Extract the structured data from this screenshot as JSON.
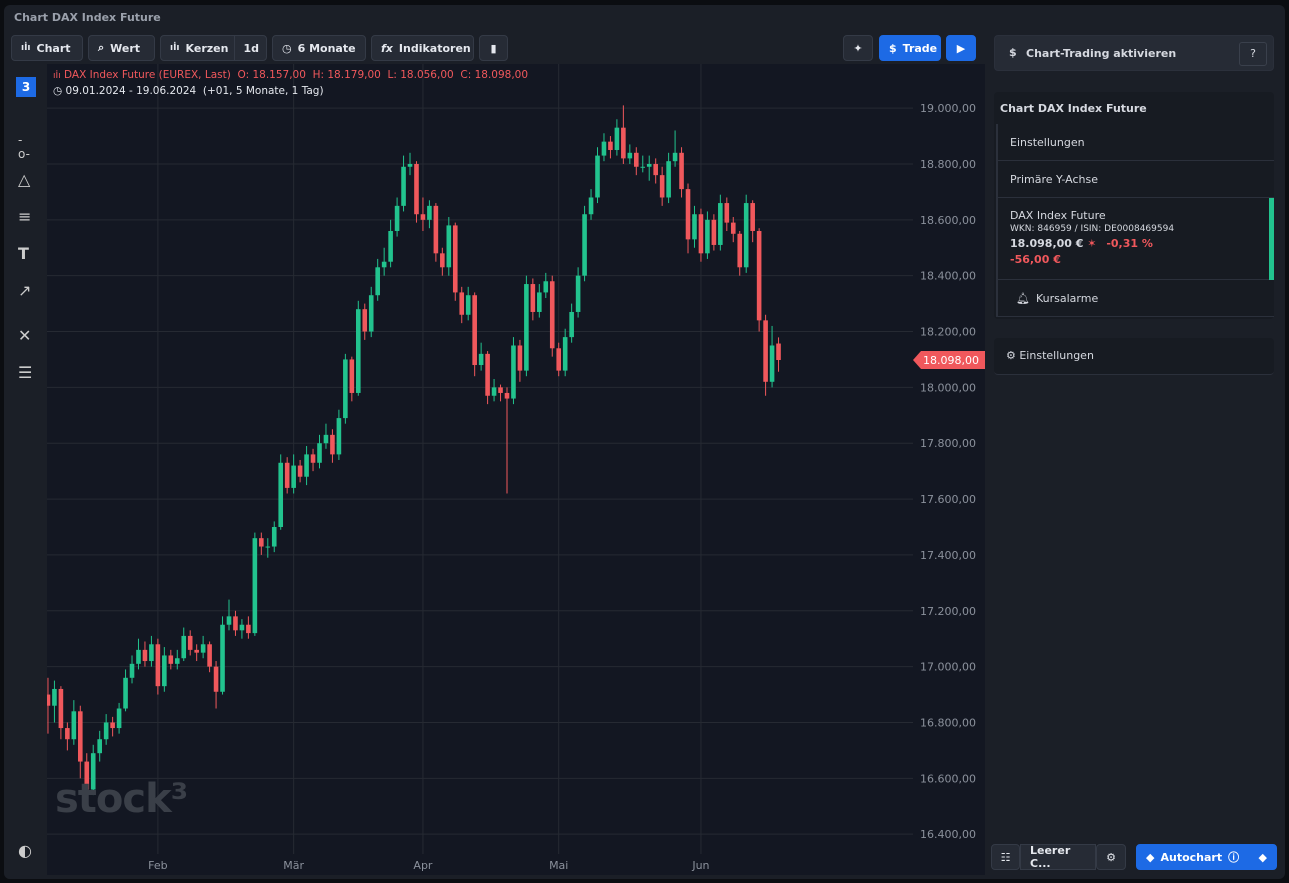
{
  "header": {
    "title": "Chart DAX Index Future"
  },
  "toolbar": {
    "chart": "Chart",
    "value": "Wert",
    "candles": "Kerzen",
    "interval": "1d",
    "range": "6 Monate",
    "indicators": "Indikatoren",
    "trade": "Trade"
  },
  "legend": {
    "instrument": "DAX Index Future (EUREX, Last)",
    "open": "O: 18.157,00",
    "high": "H: 18.179,00",
    "low": "L: 18.056,00",
    "close": "C: 18.098,00",
    "period": "09.01.2024 - 19.06.2024",
    "span": "(+01, 5 Monate, 1 Tag)"
  },
  "watermark": "stock³",
  "chart_data": {
    "type": "candlestick",
    "up_color": "#22c38e",
    "down_color": "#f0585c",
    "grid": true,
    "xlim": [
      -0.15,
      133.8
    ],
    "xticks": [
      {
        "value": 17,
        "label": "Feb"
      },
      {
        "value": 38,
        "label": "Mär"
      },
      {
        "value": 58,
        "label": "Apr"
      },
      {
        "value": 79,
        "label": "Mai"
      },
      {
        "value": 101,
        "label": "Jun"
      }
    ],
    "ylim": [
      16329,
      19158
    ],
    "yticks": [
      {
        "value": 16400,
        "label": "16.400,00"
      },
      {
        "value": 16600,
        "label": "16.600,00"
      },
      {
        "value": 16800,
        "label": "16.800,00"
      },
      {
        "value": 17000,
        "label": "17.000,00"
      },
      {
        "value": 17200,
        "label": "17.200,00"
      },
      {
        "value": 17400,
        "label": "17.400,00"
      },
      {
        "value": 17600,
        "label": "17.600,00"
      },
      {
        "value": 17800,
        "label": "17.800,00"
      },
      {
        "value": 18000,
        "label": "18.000,00"
      },
      {
        "value": 18200,
        "label": "18.200,00"
      },
      {
        "value": 18400,
        "label": "18.400,00"
      },
      {
        "value": 18600,
        "label": "18.600,00"
      },
      {
        "value": 18800,
        "label": "18.800,00"
      },
      {
        "value": 19000,
        "label": "19.000,00"
      }
    ],
    "last_price": {
      "value": 18098,
      "label": "18.098,00"
    },
    "ohlc": [
      [
        16900,
        16960,
        16760,
        16860
      ],
      [
        16860,
        16950,
        16800,
        16920
      ],
      [
        16920,
        16930,
        16740,
        16780
      ],
      [
        16780,
        16800,
        16700,
        16740
      ],
      [
        16740,
        16880,
        16720,
        16840
      ],
      [
        16840,
        16860,
        16600,
        16660
      ],
      [
        16660,
        16690,
        16520,
        16560
      ],
      [
        16560,
        16720,
        16540,
        16690
      ],
      [
        16690,
        16770,
        16660,
        16740
      ],
      [
        16740,
        16830,
        16720,
        16800
      ],
      [
        16800,
        16820,
        16750,
        16780
      ],
      [
        16780,
        16870,
        16760,
        16850
      ],
      [
        16850,
        16990,
        16840,
        16960
      ],
      [
        16960,
        17040,
        16940,
        17010
      ],
      [
        17010,
        17100,
        16990,
        17060
      ],
      [
        17060,
        17090,
        17000,
        17020
      ],
      [
        17020,
        17110,
        17000,
        17080
      ],
      [
        17080,
        17100,
        16900,
        16930
      ],
      [
        16930,
        17070,
        16910,
        17040
      ],
      [
        17040,
        17060,
        16990,
        17010
      ],
      [
        17010,
        17060,
        16990,
        17030
      ],
      [
        17030,
        17140,
        17020,
        17110
      ],
      [
        17110,
        17130,
        17040,
        17060
      ],
      [
        17060,
        17080,
        17020,
        17050
      ],
      [
        17050,
        17110,
        17030,
        17080
      ],
      [
        17080,
        17090,
        16980,
        17000
      ],
      [
        17000,
        17020,
        16850,
        16910
      ],
      [
        16910,
        17180,
        16900,
        17150
      ],
      [
        17150,
        17240,
        17130,
        17180
      ],
      [
        17180,
        17200,
        17110,
        17130
      ],
      [
        17130,
        17170,
        17100,
        17150
      ],
      [
        17150,
        17180,
        17100,
        17120
      ],
      [
        17120,
        17480,
        17110,
        17460
      ],
      [
        17460,
        17480,
        17400,
        17430
      ],
      [
        17430,
        17460,
        17390,
        17430
      ],
      [
        17430,
        17520,
        17410,
        17500
      ],
      [
        17500,
        17760,
        17490,
        17730
      ],
      [
        17730,
        17750,
        17620,
        17640
      ],
      [
        17640,
        17760,
        17620,
        17720
      ],
      [
        17720,
        17740,
        17660,
        17680
      ],
      [
        17680,
        17790,
        17650,
        17760
      ],
      [
        17760,
        17780,
        17700,
        17730
      ],
      [
        17730,
        17830,
        17710,
        17800
      ],
      [
        17800,
        17870,
        17780,
        17830
      ],
      [
        17830,
        17850,
        17730,
        17760
      ],
      [
        17760,
        17920,
        17740,
        17890
      ],
      [
        17890,
        18120,
        17870,
        18100
      ],
      [
        18100,
        18110,
        17950,
        17980
      ],
      [
        17980,
        18310,
        17970,
        18280
      ],
      [
        18280,
        18300,
        18170,
        18200
      ],
      [
        18200,
        18360,
        18180,
        18330
      ],
      [
        18330,
        18460,
        18310,
        18430
      ],
      [
        18430,
        18500,
        18400,
        18450
      ],
      [
        18450,
        18600,
        18430,
        18560
      ],
      [
        18560,
        18680,
        18540,
        18650
      ],
      [
        18650,
        18830,
        18630,
        18790
      ],
      [
        18790,
        18840,
        18760,
        18800
      ],
      [
        18800,
        18810,
        18590,
        18620
      ],
      [
        18620,
        18680,
        18560,
        18600
      ],
      [
        18600,
        18670,
        18570,
        18650
      ],
      [
        18650,
        18660,
        18450,
        18480
      ],
      [
        18480,
        18500,
        18400,
        18430
      ],
      [
        18430,
        18610,
        18400,
        18580
      ],
      [
        18580,
        18590,
        18310,
        18340
      ],
      [
        18340,
        18360,
        18230,
        18260
      ],
      [
        18260,
        18360,
        18240,
        18330
      ],
      [
        18330,
        18340,
        18040,
        18080
      ],
      [
        18080,
        18160,
        18060,
        18120
      ],
      [
        18120,
        18130,
        17940,
        17970
      ],
      [
        17970,
        18030,
        17950,
        18000
      ],
      [
        18000,
        18010,
        17950,
        17980
      ],
      [
        17980,
        18000,
        17620,
        17960
      ],
      [
        17960,
        18180,
        17940,
        18150
      ],
      [
        18150,
        18170,
        18020,
        18060
      ],
      [
        18060,
        18400,
        18040,
        18370
      ],
      [
        18370,
        18390,
        18240,
        18270
      ],
      [
        18270,
        18370,
        18250,
        18340
      ],
      [
        18340,
        18410,
        18320,
        18380
      ],
      [
        18380,
        18400,
        18110,
        18140
      ],
      [
        18140,
        18160,
        18040,
        18060
      ],
      [
        18060,
        18210,
        18040,
        18180
      ],
      [
        18180,
        18300,
        18160,
        18270
      ],
      [
        18270,
        18430,
        18250,
        18400
      ],
      [
        18400,
        18650,
        18380,
        18620
      ],
      [
        18620,
        18710,
        18600,
        18680
      ],
      [
        18680,
        18860,
        18660,
        18830
      ],
      [
        18830,
        18910,
        18810,
        18880
      ],
      [
        18880,
        18900,
        18820,
        18850
      ],
      [
        18850,
        18960,
        18830,
        18930
      ],
      [
        18930,
        19010,
        18800,
        18820
      ],
      [
        18820,
        18870,
        18800,
        18840
      ],
      [
        18840,
        18860,
        18760,
        18790
      ],
      [
        18790,
        18830,
        18770,
        18790
      ],
      [
        18790,
        18830,
        18740,
        18800
      ],
      [
        18800,
        18820,
        18730,
        18760
      ],
      [
        18760,
        18790,
        18650,
        18680
      ],
      [
        18680,
        18840,
        18660,
        18810
      ],
      [
        18810,
        18920,
        18790,
        18840
      ],
      [
        18840,
        18860,
        18680,
        18710
      ],
      [
        18710,
        18730,
        18480,
        18530
      ],
      [
        18530,
        18650,
        18500,
        18620
      ],
      [
        18620,
        18640,
        18450,
        18480
      ],
      [
        18480,
        18630,
        18460,
        18600
      ],
      [
        18600,
        18620,
        18490,
        18510
      ],
      [
        18510,
        18690,
        18490,
        18660
      ],
      [
        18660,
        18680,
        18560,
        18590
      ],
      [
        18590,
        18610,
        18520,
        18550
      ],
      [
        18550,
        18560,
        18400,
        18430
      ],
      [
        18430,
        18690,
        18410,
        18660
      ],
      [
        18660,
        18670,
        18520,
        18560
      ],
      [
        18560,
        18570,
        18200,
        18240
      ],
      [
        18240,
        18260,
        17970,
        18020
      ],
      [
        18020,
        18220,
        18000,
        18150
      ],
      [
        18157,
        18179,
        18056,
        18098
      ]
    ]
  },
  "panel": {
    "chart_trading": "Chart-Trading aktivieren",
    "help": "?",
    "section_title": "Chart DAX Index Future",
    "settings": "Einstellungen",
    "primary_axis": "Primäre Y-Achse",
    "instrument": "DAX Index Future",
    "ids": "WKN: 846959 / ISIN: DE0008469594",
    "price": "18.098,00 €",
    "change_pct": "-0,31 %",
    "change_abs": "-56,00 €",
    "alarms": "Kursalarme",
    "settings2": "Einstellungen"
  },
  "footer": {
    "template": "Leerer C...",
    "autochart": "Autochart"
  }
}
